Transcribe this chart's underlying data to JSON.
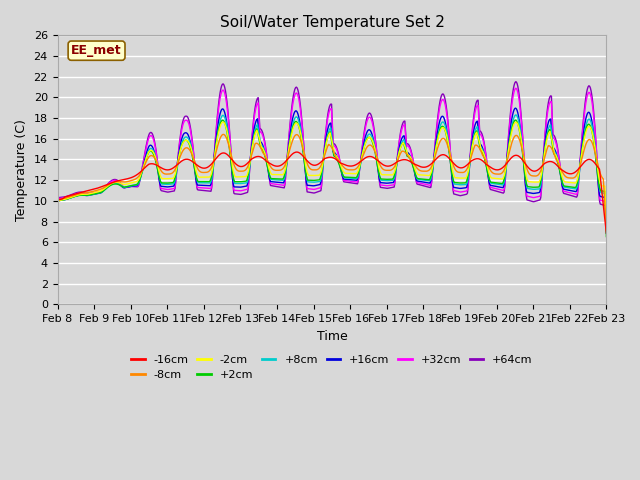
{
  "title": "Soil/Water Temperature Set 2",
  "xlabel": "Time",
  "ylabel": "Temperature (C)",
  "ylim": [
    0,
    26
  ],
  "yticks": [
    0,
    2,
    4,
    6,
    8,
    10,
    12,
    14,
    16,
    18,
    20,
    22,
    24,
    26
  ],
  "x_labels": [
    "Feb 8",
    "Feb 9",
    "Feb 10",
    "Feb 11",
    "Feb 12",
    "Feb 13",
    "Feb 14",
    "Feb 15",
    "Feb 16",
    "Feb 17",
    "Feb 18",
    "Feb 19",
    "Feb 20",
    "Feb 21",
    "Feb 22",
    "Feb 23"
  ],
  "annotation": "EE_met",
  "series_colors": {
    "-16cm": "#ff0000",
    "-8cm": "#ff8800",
    "-2cm": "#ffff00",
    "+2cm": "#00cc00",
    "+8cm": "#00cccc",
    "+16cm": "#0000dd",
    "+32cm": "#ff00ff",
    "+64cm": "#8800bb"
  },
  "series_order": [
    "-16cm",
    "-8cm",
    "-2cm",
    "+2cm",
    "+8cm",
    "+16cm",
    "+32cm",
    "+64cm"
  ],
  "bg_color": "#d8d8d8",
  "grid_color": "#ffffff",
  "title_fontsize": 11,
  "axis_fontsize": 9,
  "tick_fontsize": 8
}
